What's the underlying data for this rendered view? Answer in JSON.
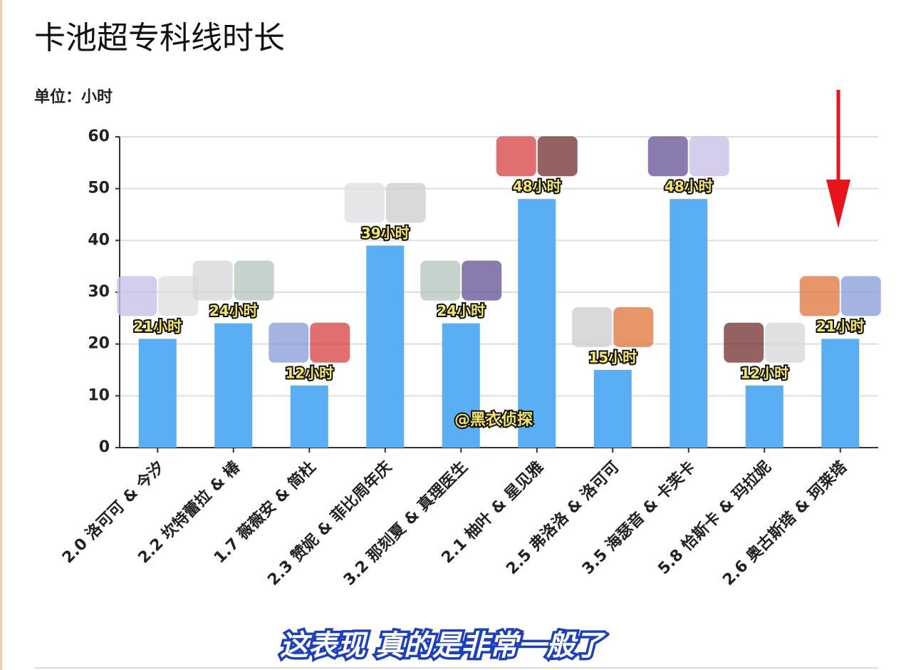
{
  "chart_data": {
    "type": "bar",
    "title": "卡池超专科线时长",
    "subtitle": "单位：小时",
    "categories": [
      "2.0 洛可可 & 今汐",
      "2.2 坎特蕾拉 & 椿",
      "1.7 薇薇安 & 简杜",
      "2.3 赞妮 & 菲比周年庆",
      "3.2 那刻夏 & 真理医生",
      "2.1 柚叶 & 星见雅",
      "2.5 弗洛洛 & 洛可可",
      "3.5 海瑟音 & 卡芙卡",
      "5.8 恰斯卡 & 玛拉妮",
      "2.6 奥古斯塔 & 珂莱塔"
    ],
    "values": [
      21,
      24,
      12,
      39,
      24,
      48,
      15,
      48,
      12,
      21
    ],
    "value_labels": [
      "21小时",
      "24小时",
      "12小时",
      "39小时",
      "24小时",
      "48小时",
      "15小时",
      "48小时",
      "12小时",
      "21小时"
    ],
    "color": "#5aaef3",
    "ylim": [
      0,
      60
    ],
    "yticks": [
      0,
      10,
      20,
      30,
      40,
      50,
      60
    ],
    "grid": true,
    "watermark": "@黑衣侦探",
    "caption": "这表现  真的是非常一般了"
  }
}
